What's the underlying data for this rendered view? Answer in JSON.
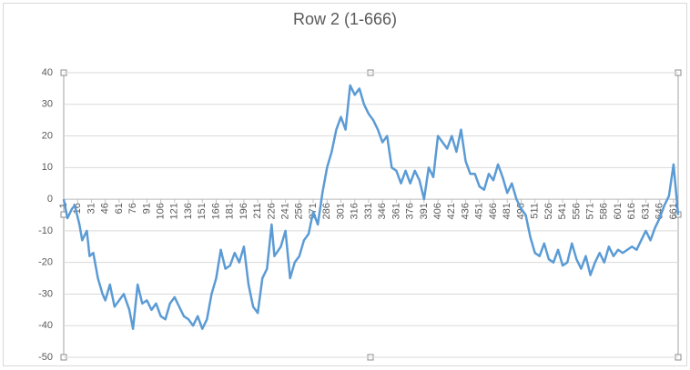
{
  "chart_data": {
    "type": "line",
    "title": "Row 2 (1-666)",
    "x": [
      1,
      5,
      10,
      13,
      18,
      21,
      26,
      29,
      33,
      38,
      43,
      46,
      51,
      56,
      61,
      66,
      72,
      76,
      81,
      86,
      91,
      96,
      101,
      106,
      111,
      116,
      121,
      126,
      131,
      136,
      141,
      146,
      151,
      156,
      161,
      166,
      171,
      176,
      181,
      186,
      191,
      196,
      201,
      206,
      211,
      216,
      221,
      226,
      229,
      236,
      241,
      246,
      251,
      256,
      261,
      266,
      271,
      276,
      281,
      286,
      291,
      296,
      301,
      306,
      311,
      316,
      321,
      326,
      331,
      336,
      341,
      346,
      351,
      356,
      361,
      366,
      371,
      376,
      381,
      386,
      391,
      396,
      401,
      406,
      411,
      416,
      421,
      426,
      431,
      436,
      441,
      446,
      451,
      456,
      461,
      466,
      471,
      476,
      481,
      486,
      491,
      496,
      501,
      506,
      511,
      516,
      521,
      526,
      531,
      536,
      541,
      546,
      551,
      556,
      561,
      566,
      571,
      576,
      581,
      586,
      591,
      596,
      601,
      606,
      611,
      616,
      621,
      626,
      631,
      636,
      641,
      646,
      651,
      656,
      661,
      666
    ],
    "series": [
      {
        "name": "Row 2",
        "color": "#5b9bd5",
        "values": [
          0,
          -6,
          -3,
          -2,
          -8,
          -13,
          -10,
          -18,
          -17,
          -25,
          -30,
          -32,
          -27,
          -34,
          -32,
          -30,
          -35,
          -41,
          -27,
          -33,
          -32,
          -35,
          -33,
          -37,
          -38,
          -33,
          -31,
          -34,
          -37,
          -38,
          -40,
          -37,
          -41,
          -38,
          -30,
          -25,
          -16,
          -22,
          -21,
          -17,
          -20,
          -15,
          -27,
          -34,
          -36,
          -25,
          -22,
          -8,
          -18,
          -15,
          -10,
          -25,
          -20,
          -18,
          -13,
          -11,
          -4,
          -8,
          2,
          10,
          15,
          22,
          26,
          22,
          36,
          33,
          35,
          30,
          27,
          25,
          22,
          18,
          20,
          10,
          9,
          5,
          9,
          5,
          9,
          6,
          0,
          10,
          7,
          20,
          18,
          16,
          20,
          15,
          22,
          12,
          8,
          8,
          4,
          3,
          8,
          6,
          11,
          7,
          2,
          5,
          0,
          -3,
          -5,
          -12,
          -17,
          -18,
          -14,
          -19,
          -20,
          -16,
          -21,
          -20,
          -14,
          -19,
          -22,
          -18,
          -24,
          -20,
          -17,
          -20,
          -15,
          -18,
          -16,
          -17,
          -16,
          -15,
          -16,
          -13,
          -10,
          -13,
          -9,
          -6,
          -2,
          1,
          11,
          -5
        ]
      }
    ],
    "xlim": [
      1,
      666
    ],
    "xticks": [
      1,
      16,
      31,
      46,
      61,
      76,
      91,
      106,
      121,
      136,
      151,
      166,
      181,
      196,
      211,
      226,
      241,
      256,
      271,
      286,
      301,
      316,
      331,
      346,
      361,
      376,
      391,
      406,
      421,
      436,
      451,
      466,
      481,
      496,
      511,
      526,
      541,
      556,
      571,
      586,
      601,
      616,
      631,
      646,
      661
    ],
    "ylim": [
      -50,
      40
    ],
    "yticks": [
      -50,
      -40,
      -30,
      -20,
      -10,
      0,
      10,
      20,
      30,
      40
    ],
    "grid": true
  }
}
